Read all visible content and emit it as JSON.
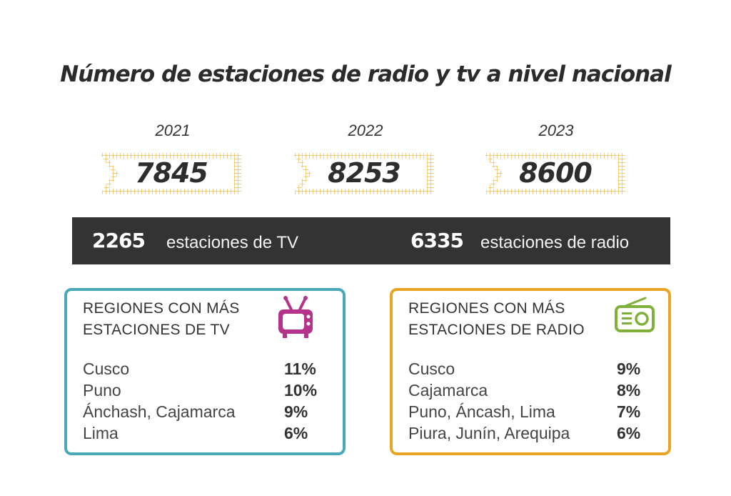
{
  "title": "Número de estaciones de radio y tv a nivel nacional",
  "years": [
    {
      "year": "2021",
      "value": "7845"
    },
    {
      "year": "2022",
      "value": "8253"
    },
    {
      "year": "2023",
      "value": "8600"
    }
  ],
  "summary": {
    "tv_count": "2265",
    "tv_label": "estaciones de TV",
    "radio_count": "6335",
    "radio_label": "estaciones de radio"
  },
  "tv_card": {
    "heading_line1": "REGIONES CON MÁS",
    "heading_line2": "ESTACIONES DE TV",
    "icon": "tv-icon",
    "rows": [
      {
        "region": "Cusco",
        "pct": "11%"
      },
      {
        "region": "Puno",
        "pct": "10%"
      },
      {
        "region": "Ánchash, Cajamarca",
        "pct": "9%"
      },
      {
        "region": "Lima",
        "pct": "6%"
      }
    ]
  },
  "radio_card": {
    "heading_line1": "REGIONES CON MÁS",
    "heading_line2": "ESTACIONES DE RADIO",
    "icon": "radio-icon",
    "rows": [
      {
        "region": "Cusco",
        "pct": "9%"
      },
      {
        "region": "Cajamarca",
        "pct": "8%"
      },
      {
        "region": "Puno, Áncash, Lima",
        "pct": "7%"
      },
      {
        "region": "Piura, Junín, Arequipa",
        "pct": "6%"
      }
    ]
  },
  "colors": {
    "tv_border": "#4aa8b8",
    "radio_border": "#e8a524",
    "tv_icon": "#b5338a",
    "radio_icon": "#7fb03a",
    "banner": "#f2b233",
    "bar": "#333333"
  }
}
